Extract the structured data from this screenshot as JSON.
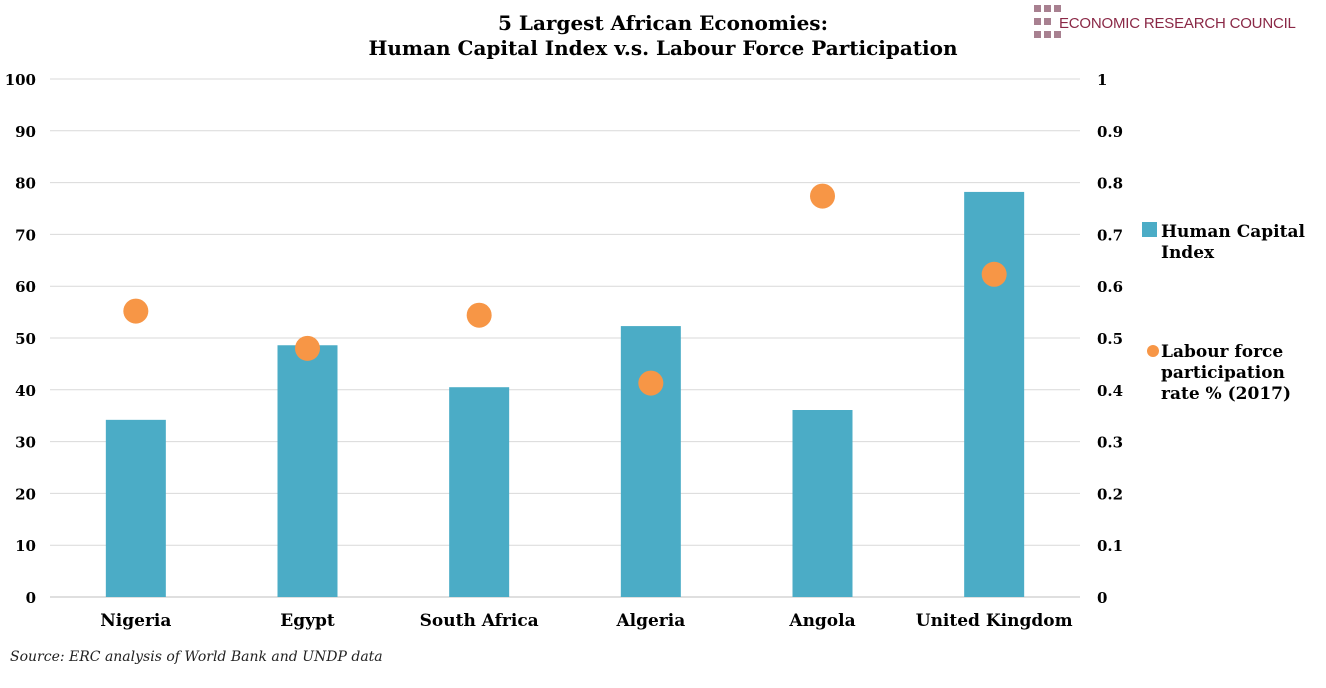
{
  "logo": {
    "text": "ECONOMIC RESEARCH COUNCIL"
  },
  "source": "Source: ERC analysis of World Bank and UNDP data",
  "colors": {
    "bar": "#4bacc6",
    "dot": "#f79646",
    "grid": "#d9d9d9"
  },
  "chart_data": {
    "type": "bar",
    "title": "5 Largest African Economies:",
    "subtitle": "Human Capital Index v.s. Labour Force Participation",
    "categories": [
      "Nigeria",
      "Egypt",
      "South Africa",
      "Algeria",
      "Angola",
      "United Kingdom"
    ],
    "series": [
      {
        "name": "Human Capital Index",
        "type": "bar",
        "axis": "left",
        "values": [
          34.2,
          48.6,
          40.5,
          52.3,
          36.1,
          78.2
        ]
      },
      {
        "name": "Labour force participation rate % (2017)",
        "type": "scatter",
        "axis": "right",
        "values": [
          0.552,
          0.48,
          0.544,
          0.413,
          0.774,
          0.623
        ]
      }
    ],
    "legend_lines": [
      [
        "Human Capital",
        "Index"
      ],
      [
        "Labour force",
        "participation",
        "rate % (2017)"
      ]
    ],
    "ylim": [
      0,
      100
    ],
    "y2lim": [
      0,
      1
    ],
    "yticks": [
      "0",
      "10",
      "20",
      "30",
      "40",
      "50",
      "60",
      "70",
      "80",
      "90",
      "100"
    ],
    "y2ticks": [
      "0",
      "0.1",
      "0.2",
      "0.3",
      "0.4",
      "0.5",
      "0.6",
      "0.7",
      "0.8",
      "0.9",
      "1"
    ],
    "grid": true,
    "legend_position": "right"
  }
}
